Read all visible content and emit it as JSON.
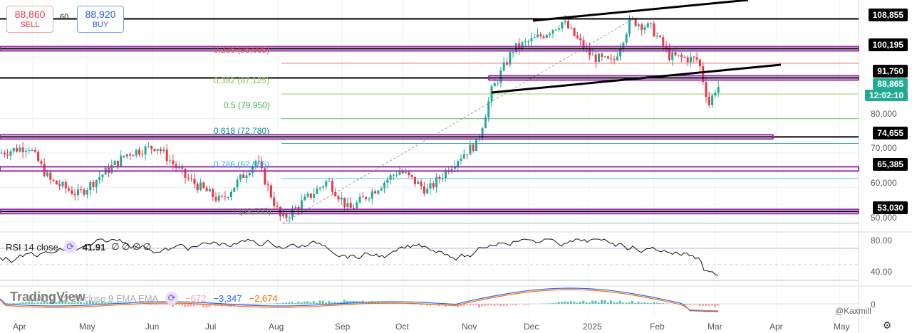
{
  "order": {
    "sell_price": "88,860",
    "sell_label": "SELL",
    "buy_price": "88,920",
    "buy_label": "BUY",
    "spread": "60"
  },
  "price_labels": [
    {
      "text": "108,855",
      "bg": "#000000",
      "fg": "#ffffff"
    },
    {
      "text": "100,195",
      "bg": "#000000",
      "fg": "#ffffff"
    },
    {
      "text": "91,750",
      "bg": "#000000",
      "fg": "#ffffff"
    },
    {
      "text": "88,865",
      "bg": "#22ab94",
      "fg": "#ffffff"
    },
    {
      "text": "12:02:10",
      "bg": "#22ab94",
      "fg": "#ffffff"
    },
    {
      "text": "74,655",
      "bg": "#000000",
      "fg": "#ffffff"
    },
    {
      "text": "65,385",
      "bg": "#000000",
      "fg": "#ffffff"
    },
    {
      "text": "53,030",
      "bg": "#000000",
      "fg": "#ffffff"
    }
  ],
  "price_axis": [
    "80,000",
    "70,000",
    "60,000",
    "50,000"
  ],
  "fib_labels": [
    {
      "text": "0.236 (96,005)",
      "color": "#e04a4a"
    },
    {
      "text": "0.382 (87,125)",
      "color": "#8bc34a"
    },
    {
      "text": "0.5 (79,950)",
      "color": "#4caf50"
    },
    {
      "text": "0.618 (72,780)",
      "color": "#009688"
    },
    {
      "text": "0.786 (62,565)",
      "color": "#29b6f6"
    },
    {
      "text": "1 (49,555)",
      "color": "#777777"
    }
  ],
  "rsi": {
    "label": "RSI 14 close",
    "value": "41.91",
    "extra": "∅ ∅ ∅ ∅",
    "axis": [
      "80.00",
      "40.00"
    ]
  },
  "macd": {
    "label": "MACD 12 26 close 9 EMA EMA",
    "hist": "−672",
    "macd": "−3,347",
    "signal": "−2,674",
    "axis": "0"
  },
  "time_axis": [
    "Apr",
    "May",
    "Jun",
    "Jul",
    "Aug",
    "Sep",
    "Oct",
    "Nov",
    "Dec",
    "2025",
    "Feb",
    "Mar",
    "Apr",
    "May"
  ],
  "watermark": "TradingView",
  "credit": "@Kaxmill",
  "icons": {
    "settings": "gear-icon",
    "indicator": "refresh-icon"
  },
  "colors": {
    "up": "#22ab94",
    "down": "#f23645",
    "support": "#9c27b0"
  }
}
